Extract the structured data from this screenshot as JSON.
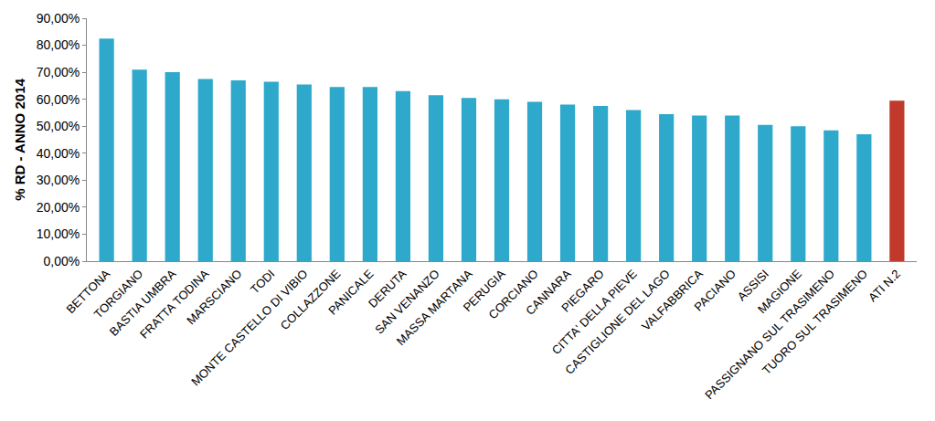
{
  "chart_data": {
    "type": "bar",
    "categories": [
      "BETTONA",
      "TORGIANO",
      "BASTIA UMBRA",
      "FRATTA TODINA",
      "MARSCIANO",
      "TODI",
      "MONTE CASTELLO DI VIBIO",
      "COLLAZZONE",
      "PANICALE",
      "DERUTA",
      "SAN VENANZO",
      "MASSA MARTANA",
      "PERUGIA",
      "CORCIANO",
      "CANNARA",
      "PIEGARO",
      "CITTA' DELLA PIEVE",
      "CASTIGLIONE DEL LAGO",
      "VALFABBRICA",
      "PACIANO",
      "ASSISI",
      "MAGIONE",
      "PASSIGNANO SUL TRASIMENO",
      "TUORO SUL TRASIMENO",
      "ATI N.2"
    ],
    "values": [
      82.5,
      71,
      70,
      67.5,
      67,
      66.5,
      65.5,
      64.5,
      64.5,
      63,
      61.5,
      60.5,
      60,
      59,
      58,
      57.5,
      56,
      54.5,
      54,
      54,
      50.5,
      50,
      48.5,
      47,
      59.5
    ],
    "colors": [
      "#2ea9cb",
      "#2ea9cb",
      "#2ea9cb",
      "#2ea9cb",
      "#2ea9cb",
      "#2ea9cb",
      "#2ea9cb",
      "#2ea9cb",
      "#2ea9cb",
      "#2ea9cb",
      "#2ea9cb",
      "#2ea9cb",
      "#2ea9cb",
      "#2ea9cb",
      "#2ea9cb",
      "#2ea9cb",
      "#2ea9cb",
      "#2ea9cb",
      "#2ea9cb",
      "#2ea9cb",
      "#2ea9cb",
      "#2ea9cb",
      "#2ea9cb",
      "#2ea9cb",
      "#c0392b"
    ],
    "y_label": "% RD - ANNO 2014",
    "ylim": [
      0,
      90
    ],
    "yticks": [
      {
        "value": 0,
        "label": "0,00%"
      },
      {
        "value": 10,
        "label": "10,00%"
      },
      {
        "value": 20,
        "label": "20,00%"
      },
      {
        "value": 30,
        "label": "30,00%"
      },
      {
        "value": 40,
        "label": "40,00%"
      },
      {
        "value": 50,
        "label": "50,00%"
      },
      {
        "value": 60,
        "label": "60,00%"
      },
      {
        "value": 70,
        "label": "70,00%"
      },
      {
        "value": 80,
        "label": "80,00%"
      },
      {
        "value": 90,
        "label": "90,00%"
      }
    ],
    "grid": false
  }
}
